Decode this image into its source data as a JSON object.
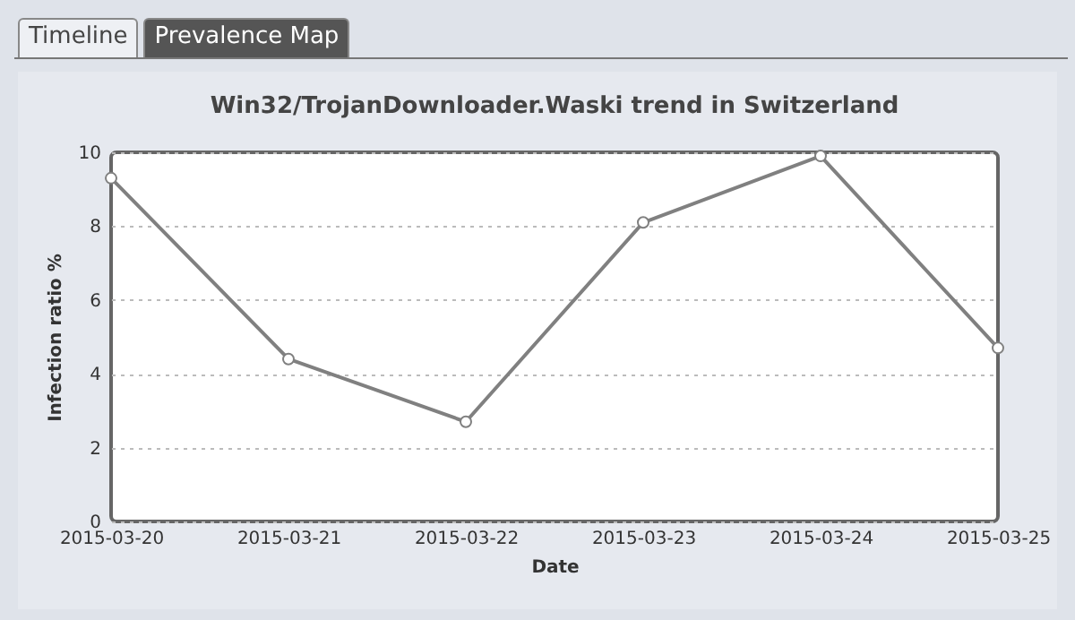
{
  "chart_data": {
    "type": "line",
    "title": "Win32/TrojanDownloader.Waski trend in Switzerland",
    "xlabel": "Date",
    "ylabel": "Infection ratio %",
    "annotations": [
      "Timeline",
      "Prevalence Map"
    ],
    "categories": [
      "2015-03-20",
      "2015-03-21",
      "2015-03-22",
      "2015-03-23",
      "2015-03-24",
      "2015-03-25"
    ],
    "series": [
      {
        "color": "#808080",
        "values": [
          9.3,
          4.4,
          2.7,
          8.1,
          9.9,
          4.7
        ]
      }
    ],
    "ylim": [
      0,
      10
    ],
    "yticks": [
      0,
      2,
      4,
      6,
      8,
      10
    ],
    "grid": "y",
    "marker": "circle",
    "line_style": "solid"
  }
}
